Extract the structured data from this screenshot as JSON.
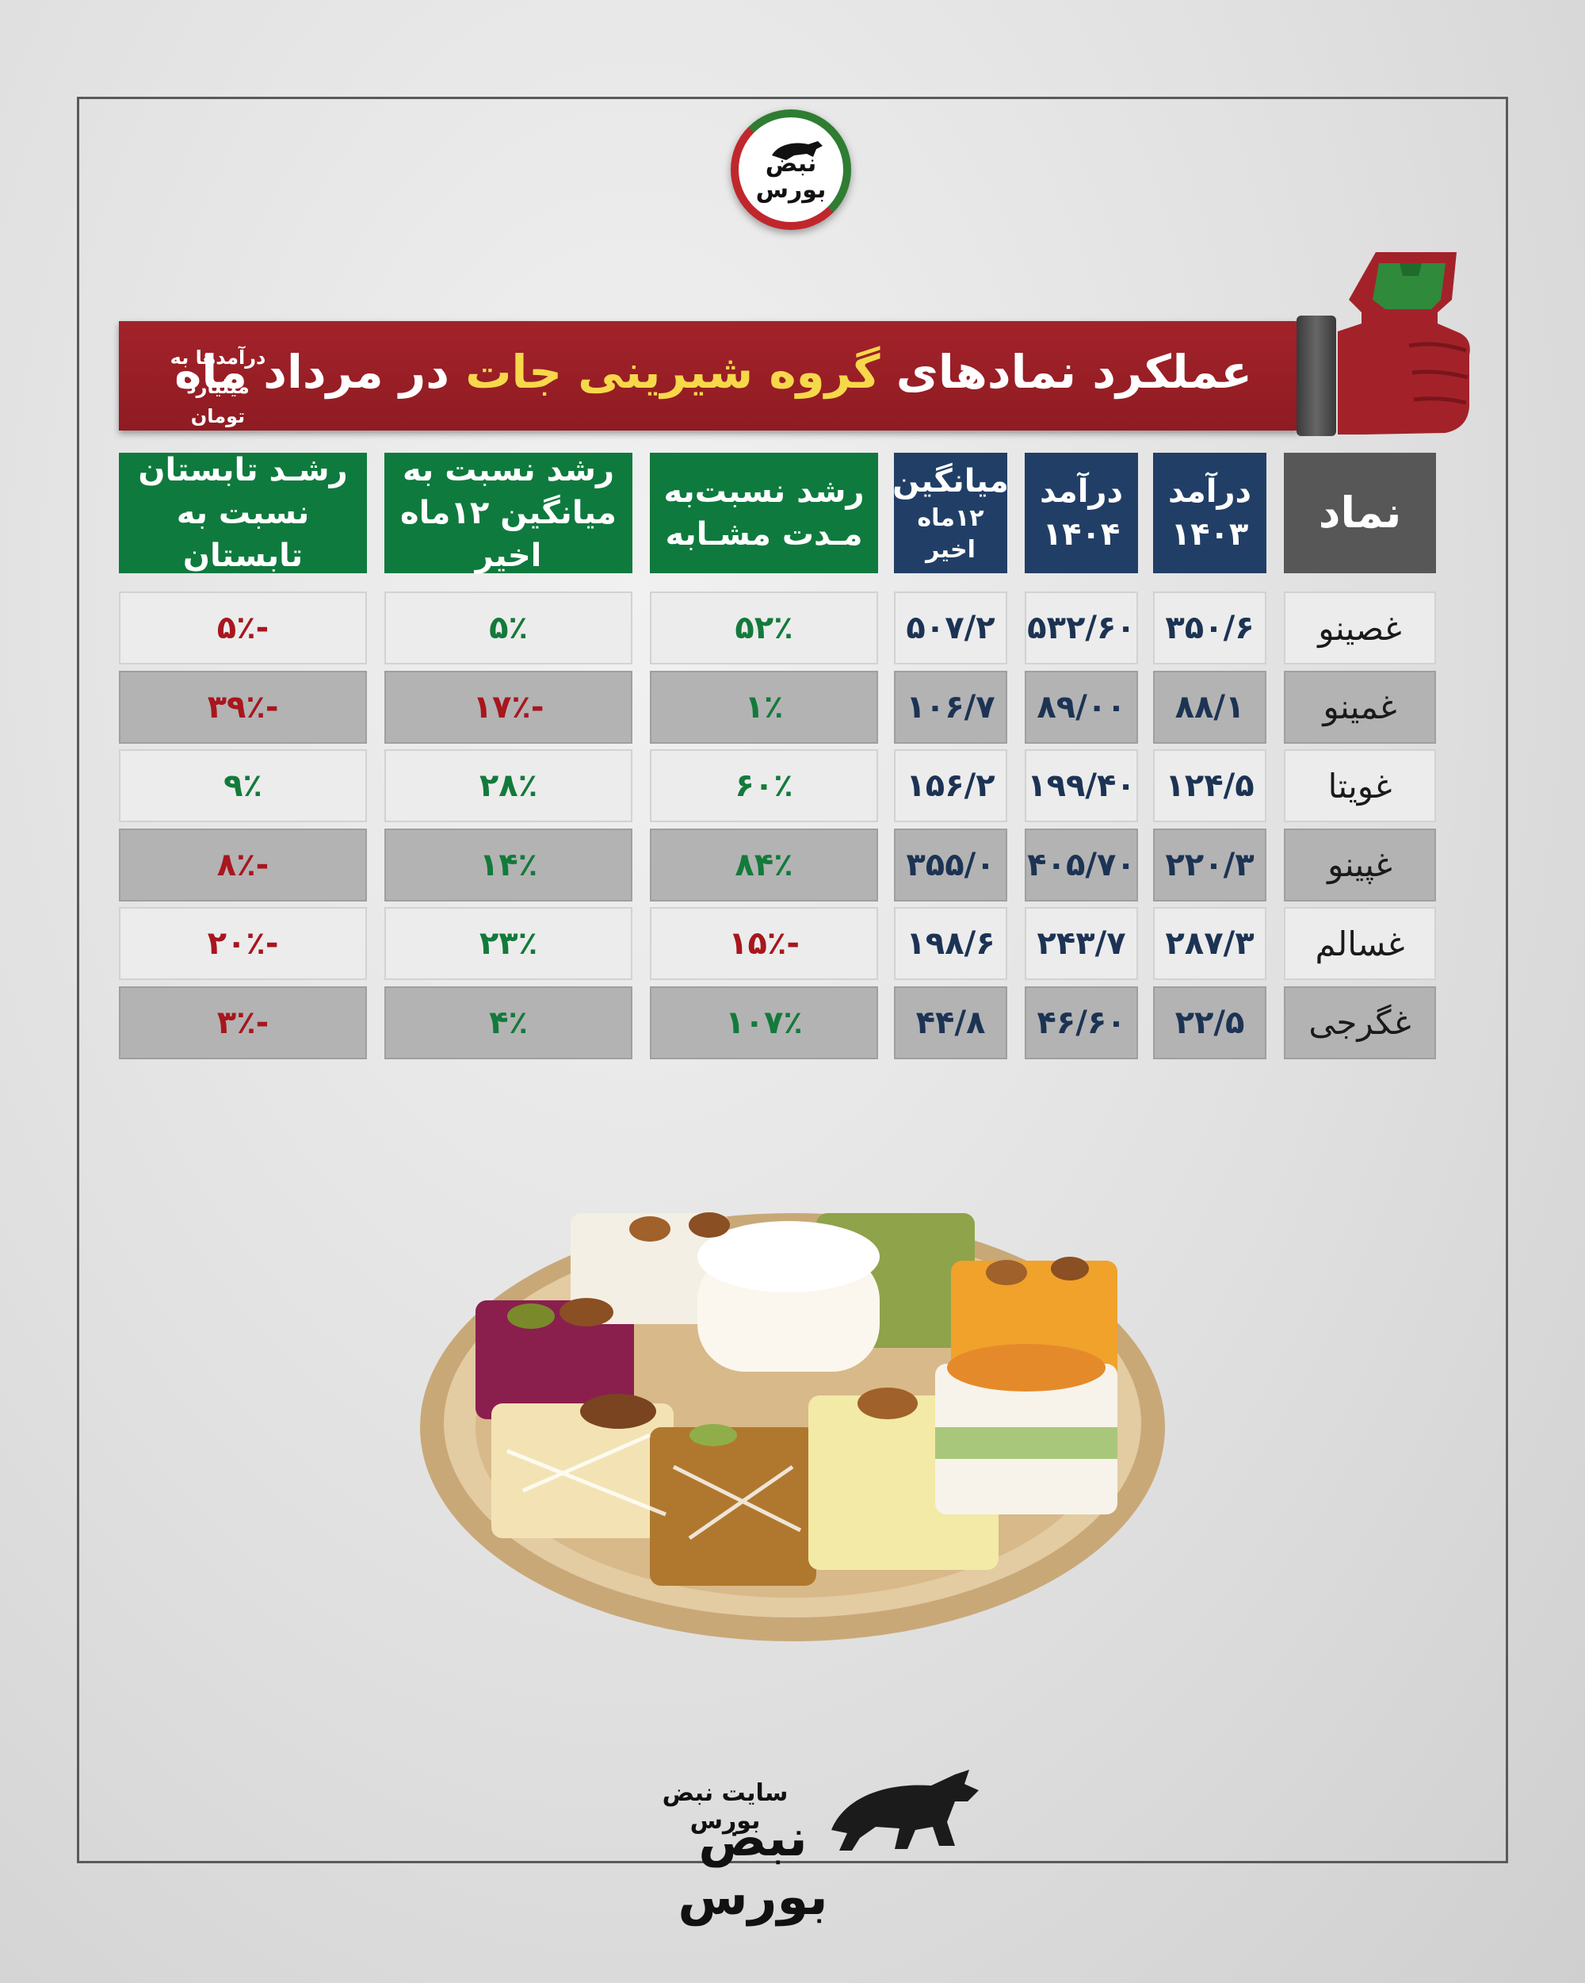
{
  "logo": {
    "line1": "نبض",
    "line2": "بورس"
  },
  "banner": {
    "title_part1": "عملکرد نمادهای",
    "title_highlight": "گروه شیرینی جات",
    "title_part2": "در مرداد ماه",
    "note_line1": "درآمدها به",
    "note_line2": "میلیارد تومان"
  },
  "table": {
    "headers": {
      "symbol": "نماد",
      "rev1403_l1": "درآمد",
      "rev1403_l2": "۱۴۰۳",
      "rev1404_l1": "درآمد",
      "rev1404_l2": "۱۴۰۴",
      "avg_l1": "میانگین",
      "avg_l2": "۱۲ماه اخیر",
      "growth_same_l1": "رشد نسبت‌به",
      "growth_same_l2": "مـدت مشـابه",
      "growth_avg_l1": "رشد نسبت به",
      "growth_avg_l2": "میانگین ۱۲ماه اخیر",
      "growth_summer_l1": "رشـد تابستان",
      "growth_summer_l2": "نسبت به تابستان"
    },
    "rows": [
      {
        "symbol": "غصینو",
        "rev1403": "۳۵۰/۶",
        "rev1404": "۵۳۲/۶۰",
        "avg": "۵۰۷/۲",
        "growth_same": "۵۲٪",
        "growth_avg": "۵٪",
        "growth_summer": "-۵٪"
      },
      {
        "symbol": "غمینو",
        "rev1403": "۸۸/۱",
        "rev1404": "۸۹/۰۰",
        "avg": "۱۰۶/۷",
        "growth_same": "۱٪",
        "growth_avg": "-۱۷٪",
        "growth_summer": "-۳۹٪"
      },
      {
        "symbol": "غویتا",
        "rev1403": "۱۲۴/۵",
        "rev1404": "۱۹۹/۴۰",
        "avg": "۱۵۶/۲",
        "growth_same": "۶۰٪",
        "growth_avg": "۲۸٪",
        "growth_summer": "۹٪"
      },
      {
        "symbol": "غپینو",
        "rev1403": "۲۲۰/۳",
        "rev1404": "۴۰۵/۷۰",
        "avg": "۳۵۵/۰",
        "growth_same": "۸۴٪",
        "growth_avg": "۱۴٪",
        "growth_summer": "-۸٪"
      },
      {
        "symbol": "غسالم",
        "rev1403": "۲۸۷/۳",
        "rev1404": "۲۴۳/۷",
        "avg": "۱۹۸/۶",
        "growth_same": "-۱۵٪",
        "growth_avg": "۲۳٪",
        "growth_summer": "-۲۰٪"
      },
      {
        "symbol": "غگرجی",
        "rev1403": "۲۲/۵",
        "rev1404": "۴۶/۶۰",
        "avg": "۴۴/۸",
        "growth_same": "۱۰۷٪",
        "growth_avg": "۴٪",
        "growth_summer": "-۳٪"
      }
    ]
  },
  "footer": {
    "site": "سایت نبض بورس",
    "brand": "نبض بورس"
  },
  "colors": {
    "banner": "#9b1f27",
    "highlight": "#f6d84a",
    "header_blue": "#213f66",
    "header_green": "#0f7a3e",
    "header_gray": "#575757",
    "positive": "#137a3b",
    "negative": "#a8161e"
  }
}
